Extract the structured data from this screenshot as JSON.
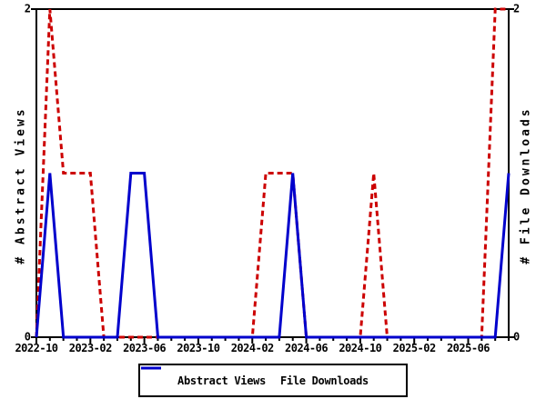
{
  "chart_data": {
    "type": "line",
    "title": "",
    "x": [
      "2022-10",
      "2022-11",
      "2022-12",
      "2023-01",
      "2023-02",
      "2023-03",
      "2023-04",
      "2023-05",
      "2023-06",
      "2023-07",
      "2023-08",
      "2023-09",
      "2023-10",
      "2023-11",
      "2023-12",
      "2024-01",
      "2024-02",
      "2024-03",
      "2024-04",
      "2024-05",
      "2024-06",
      "2024-07",
      "2024-08",
      "2024-09",
      "2024-10",
      "2024-11",
      "2024-12",
      "2025-01",
      "2025-02",
      "2025-03",
      "2025-04",
      "2025-05",
      "2025-06",
      "2025-07",
      "2025-08",
      "2025-09"
    ],
    "series": [
      {
        "name": "Abstract Views",
        "color": "#cc0000",
        "line_style": "dashed",
        "values": [
          0,
          2,
          1,
          1,
          1,
          0,
          0,
          0,
          0,
          0,
          0,
          0,
          0,
          0,
          0,
          0,
          0,
          1,
          1,
          1,
          0,
          0,
          0,
          0,
          0,
          1,
          0,
          0,
          0,
          0,
          0,
          0,
          0,
          0,
          2,
          2
        ]
      },
      {
        "name": "File Downloads",
        "color": "#0000cc",
        "line_style": "solid",
        "values": [
          0,
          1,
          0,
          0,
          0,
          0,
          0,
          1,
          1,
          0,
          0,
          0,
          0,
          0,
          0,
          0,
          0,
          0,
          0,
          1,
          0,
          0,
          0,
          0,
          0,
          0,
          0,
          0,
          0,
          0,
          0,
          0,
          0,
          0,
          0,
          1
        ]
      }
    ],
    "ylabel_left": "# Abstract Views",
    "ylabel_right": "# File Downloads",
    "ylim": [
      0,
      2
    ],
    "xtick_every": 4,
    "xtick_labels": [
      "2022-10",
      "2023-02",
      "2023-06",
      "2023-10",
      "2024-02",
      "2024-06",
      "2024-10",
      "2025-02",
      "2025-06"
    ],
    "axis_end_labels": {
      "left_top": "2",
      "left_bottom": "0",
      "right_top": "2",
      "right_bottom": "0"
    },
    "legend_position": "bottom",
    "grid": false
  },
  "colors": {
    "background": "#ffffff",
    "frame": "#000000",
    "text": "#000000"
  }
}
